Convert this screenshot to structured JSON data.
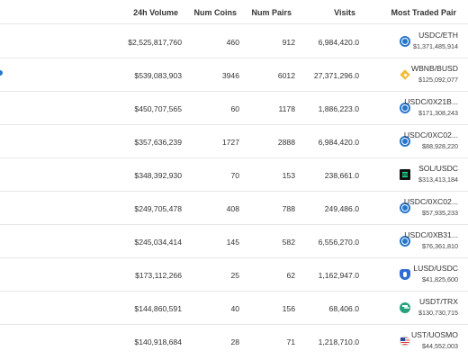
{
  "table": {
    "headers": {
      "volume": "24h Volume",
      "coins": "Num Coins",
      "pairs": "Num Pairs",
      "visits": "Visits",
      "most_traded": "Most Traded Pair"
    },
    "rows": [
      {
        "volume": "$2,525,817,760",
        "coins": "460",
        "pairs": "912",
        "visits": "6,984,420.0",
        "pair": "USDC/ETH",
        "pair_volume": "$1,371,485,914",
        "icon": "usdc-icon"
      },
      {
        "volume": "$539,083,903",
        "coins": "3946",
        "pairs": "6012",
        "visits": "27,371,296.0",
        "pair": "WBNB/BUSD",
        "pair_volume": "$125,092,077",
        "icon": "bnb-icon"
      },
      {
        "volume": "$450,707,565",
        "coins": "60",
        "pairs": "1178",
        "visits": "1,886,223.0",
        "pair": "USDC/0X21B...",
        "pair_volume": "$171,308,243",
        "icon": "usdc-icon"
      },
      {
        "volume": "$357,636,239",
        "coins": "1727",
        "pairs": "2888",
        "visits": "6,984,420.0",
        "pair": "USDC/0XC02...",
        "pair_volume": "$88,928,220",
        "icon": "usdc-icon"
      },
      {
        "volume": "$348,392,930",
        "coins": "70",
        "pairs": "153",
        "visits": "238,661.0",
        "pair": "SOL/USDC",
        "pair_volume": "$313,413,184",
        "icon": "sol-icon"
      },
      {
        "volume": "$249,705,478",
        "coins": "408",
        "pairs": "788",
        "visits": "249,486.0",
        "pair": "USDC/0XC02...",
        "pair_volume": "$57,935,233",
        "icon": "usdc-icon"
      },
      {
        "volume": "$245,034,414",
        "coins": "145",
        "pairs": "582",
        "visits": "6,556,270.0",
        "pair": "USDC/0XB31...",
        "pair_volume": "$76,361,810",
        "icon": "usdc-icon"
      },
      {
        "volume": "$173,112,266",
        "coins": "25",
        "pairs": "62",
        "visits": "1,162,947.0",
        "pair": "LUSD/USDC",
        "pair_volume": "$41,825,600",
        "icon": "lusd-icon"
      },
      {
        "volume": "$144,860,591",
        "coins": "40",
        "pairs": "156",
        "visits": "68,406.0",
        "pair": "USDT/TRX",
        "pair_volume": "$130,730,715",
        "icon": "usdt-icon"
      },
      {
        "volume": "$140,918,684",
        "coins": "28",
        "pairs": "71",
        "visits": "1,218,710.0",
        "pair": "UST/UOSMO",
        "pair_volume": "$44,552,003",
        "icon": "ust-icon"
      }
    ]
  }
}
